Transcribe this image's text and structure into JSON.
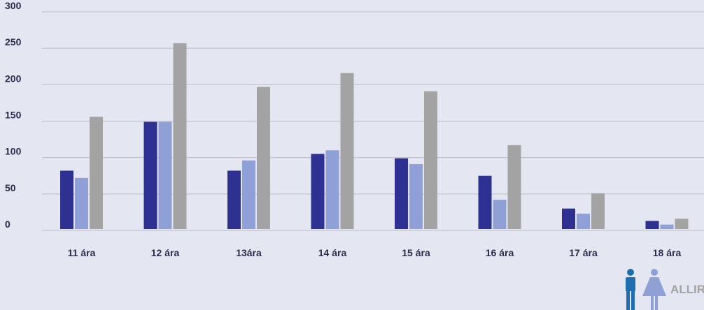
{
  "chart_data": {
    "type": "bar",
    "categories": [
      "11 ára",
      "12 ára",
      "13ára",
      "14 ára",
      "15 ára",
      "16 ára",
      "17 ára",
      "18 ára"
    ],
    "series": [
      {
        "values": [
          82,
          149,
          82,
          105,
          99,
          75,
          30,
          13
        ],
        "color": "#2e3192"
      },
      {
        "values": [
          72,
          149,
          96,
          110,
          91,
          42,
          23,
          8
        ],
        "color": "#8fa0d6"
      },
      {
        "values": [
          156,
          257,
          197,
          216,
          191,
          117,
          51,
          16
        ],
        "color": "#a3a3a3"
      }
    ],
    "yticks": [
      0,
      50,
      100,
      150,
      200,
      250,
      300
    ],
    "ylim": [
      0,
      300
    ],
    "grid": true
  },
  "legend": {
    "label": "ALLIR",
    "icons": [
      "male-figure-icon",
      "female-figure-icon"
    ],
    "colors": {
      "male": "#1f6fb0",
      "female": "#8fa0d6",
      "text": "#a3a3a3"
    }
  }
}
